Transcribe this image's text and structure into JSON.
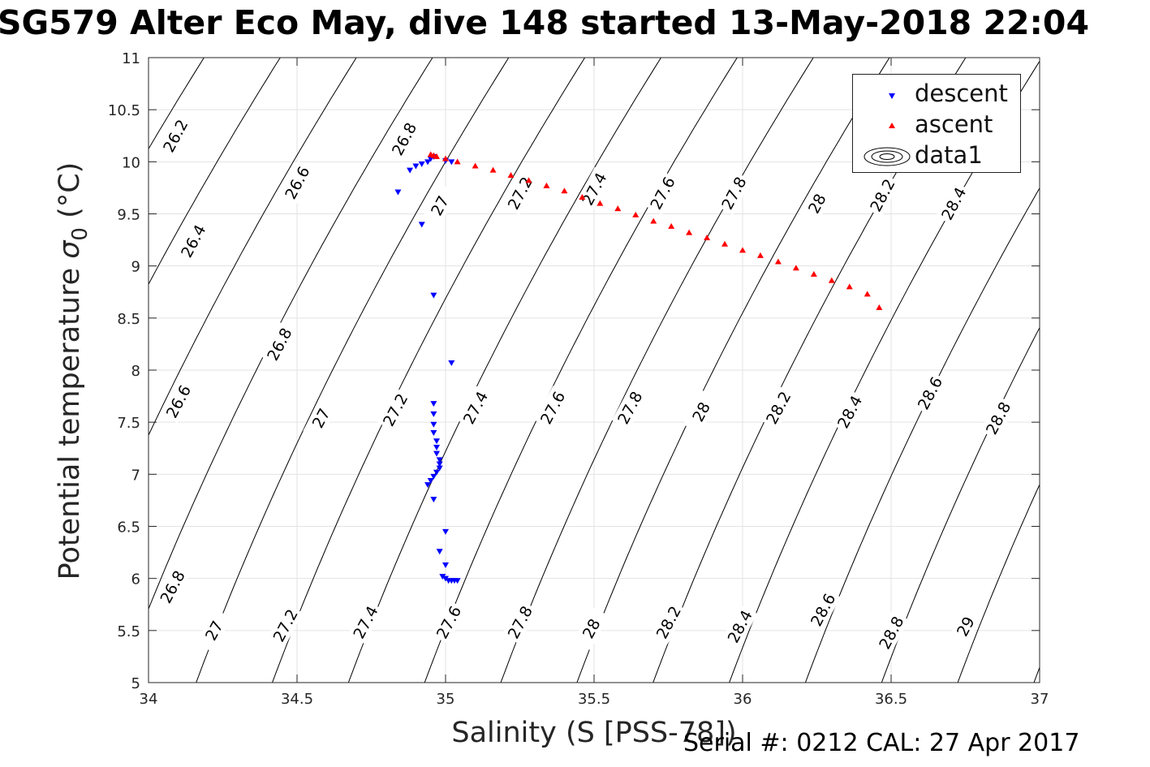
{
  "title": "SG579 Alter Eco May, dive 148 started 13-May-2018 22:04",
  "footer": {
    "serial": "Serial #: 0212  CAL: 27 Apr 2017"
  },
  "chart_data": {
    "type": "scatter",
    "xlabel": "Salinity (S [PSS-78])",
    "ylabel": "Potential temperature σ 0 (°C)",
    "xlim": [
      34,
      37
    ],
    "ylim": [
      5,
      11
    ],
    "xticks": [
      34,
      34.5,
      35,
      35.5,
      36,
      36.5,
      37
    ],
    "xtick_labels": [
      "34",
      "34.5",
      "35",
      "35.5",
      "36",
      "36.5",
      "37"
    ],
    "yticks": [
      5,
      5.5,
      6,
      6.5,
      7,
      7.5,
      8,
      8.5,
      9,
      9.5,
      10,
      10.5,
      11
    ],
    "ytick_labels": [
      "5",
      "5.5",
      "6",
      "6.5",
      "7",
      "7.5",
      "8",
      "8.5",
      "9",
      "9.5",
      "10",
      "10.5",
      "11"
    ],
    "grid": true,
    "legend": {
      "position": "top-right",
      "entries": [
        "descent",
        "ascent",
        "data1"
      ]
    },
    "series": [
      {
        "name": "descent",
        "color": "#0000ff",
        "marker": "triangle-down",
        "points": [
          [
            34.84,
            9.71
          ],
          [
            34.88,
            9.92
          ],
          [
            34.9,
            9.96
          ],
          [
            34.92,
            9.98
          ],
          [
            34.94,
            10.0
          ],
          [
            34.95,
            10.03
          ],
          [
            34.96,
            10.05
          ],
          [
            35.0,
            10.01
          ],
          [
            35.02,
            10.0
          ],
          [
            34.92,
            9.4
          ],
          [
            34.96,
            8.72
          ],
          [
            35.02,
            8.07
          ],
          [
            34.96,
            7.68
          ],
          [
            34.96,
            7.58
          ],
          [
            34.96,
            7.48
          ],
          [
            34.96,
            7.4
          ],
          [
            34.97,
            7.32
          ],
          [
            34.97,
            7.26
          ],
          [
            34.97,
            7.2
          ],
          [
            34.98,
            7.14
          ],
          [
            34.98,
            7.1
          ],
          [
            34.98,
            7.06
          ],
          [
            34.97,
            7.02
          ],
          [
            34.96,
            6.98
          ],
          [
            34.95,
            6.94
          ],
          [
            34.94,
            6.9
          ],
          [
            34.96,
            6.76
          ],
          [
            35.0,
            6.45
          ],
          [
            34.98,
            6.26
          ],
          [
            35.0,
            6.13
          ],
          [
            34.99,
            6.02
          ],
          [
            35.0,
            6.0
          ],
          [
            35.01,
            5.98
          ],
          [
            35.02,
            5.98
          ],
          [
            35.03,
            5.98
          ],
          [
            35.04,
            5.98
          ]
        ]
      },
      {
        "name": "ascent",
        "color": "#ff0000",
        "marker": "triangle-up",
        "points": [
          [
            34.95,
            10.07
          ],
          [
            34.96,
            10.06
          ],
          [
            34.97,
            10.05
          ],
          [
            35.0,
            10.03
          ],
          [
            35.04,
            10.0
          ],
          [
            35.1,
            9.96
          ],
          [
            35.16,
            9.92
          ],
          [
            35.22,
            9.87
          ],
          [
            35.28,
            9.82
          ],
          [
            35.34,
            9.77
          ],
          [
            35.4,
            9.72
          ],
          [
            35.46,
            9.66
          ],
          [
            35.52,
            9.6
          ],
          [
            35.58,
            9.55
          ],
          [
            35.64,
            9.49
          ],
          [
            35.7,
            9.43
          ],
          [
            35.76,
            9.38
          ],
          [
            35.82,
            9.32
          ],
          [
            35.88,
            9.27
          ],
          [
            35.94,
            9.21
          ],
          [
            36.0,
            9.15
          ],
          [
            36.06,
            9.1
          ],
          [
            36.12,
            9.04
          ],
          [
            36.18,
            8.98
          ],
          [
            36.24,
            8.92
          ],
          [
            36.3,
            8.86
          ],
          [
            36.36,
            8.8
          ],
          [
            36.42,
            8.73
          ],
          [
            36.46,
            8.6
          ]
        ]
      }
    ],
    "contours": {
      "label": "data1",
      "type": "sigma0 isopycnals",
      "levels": [
        26.2,
        26.4,
        26.6,
        26.8,
        27.0,
        27.2,
        27.4,
        27.6,
        27.8,
        28.0,
        28.2,
        28.4,
        28.6,
        28.8,
        29.0
      ],
      "labels": [
        {
          "text": "26.2",
          "x": 34.09,
          "y": 10.25
        },
        {
          "text": "26.6",
          "x": 34.5,
          "y": 9.8
        },
        {
          "text": "26.8",
          "x": 34.86,
          "y": 10.22
        },
        {
          "text": "27",
          "x": 34.98,
          "y": 9.58
        },
        {
          "text": "27.2",
          "x": 35.25,
          "y": 9.7
        },
        {
          "text": "27.4",
          "x": 35.5,
          "y": 9.74
        },
        {
          "text": "27.6",
          "x": 35.73,
          "y": 9.7
        },
        {
          "text": "27.8",
          "x": 35.97,
          "y": 9.7
        },
        {
          "text": "28",
          "x": 36.25,
          "y": 9.6
        },
        {
          "text": "28.2",
          "x": 36.47,
          "y": 9.68
        },
        {
          "text": "28.4",
          "x": 36.71,
          "y": 9.6
        },
        {
          "text": "26.4",
          "x": 34.15,
          "y": 9.24
        },
        {
          "text": "26.8",
          "x": 34.44,
          "y": 8.25
        },
        {
          "text": "26.6",
          "x": 34.1,
          "y": 7.7
        },
        {
          "text": "27",
          "x": 34.58,
          "y": 7.54
        },
        {
          "text": "27.2",
          "x": 34.83,
          "y": 7.62
        },
        {
          "text": "27.4",
          "x": 35.1,
          "y": 7.64
        },
        {
          "text": "27.6",
          "x": 35.36,
          "y": 7.64
        },
        {
          "text": "27.8",
          "x": 35.62,
          "y": 7.64
        },
        {
          "text": "28",
          "x": 35.86,
          "y": 7.6
        },
        {
          "text": "28.2",
          "x": 36.12,
          "y": 7.64
        },
        {
          "text": "28.4",
          "x": 36.36,
          "y": 7.6
        },
        {
          "text": "28.6",
          "x": 36.63,
          "y": 7.78
        },
        {
          "text": "28.8",
          "x": 36.86,
          "y": 7.54
        },
        {
          "text": "26.8",
          "x": 34.08,
          "y": 5.92
        },
        {
          "text": "27",
          "x": 34.22,
          "y": 5.5
        },
        {
          "text": "27.2",
          "x": 34.46,
          "y": 5.55
        },
        {
          "text": "27.4",
          "x": 34.73,
          "y": 5.58
        },
        {
          "text": "27.6",
          "x": 35.01,
          "y": 5.58
        },
        {
          "text": "27.8",
          "x": 35.25,
          "y": 5.58
        },
        {
          "text": "28",
          "x": 35.49,
          "y": 5.52
        },
        {
          "text": "28.2",
          "x": 35.75,
          "y": 5.58
        },
        {
          "text": "28.4",
          "x": 35.99,
          "y": 5.54
        },
        {
          "text": "28.6",
          "x": 36.27,
          "y": 5.7
        },
        {
          "text": "28.8",
          "x": 36.5,
          "y": 5.48
        },
        {
          "text": "29",
          "x": 36.75,
          "y": 5.54
        }
      ]
    }
  }
}
